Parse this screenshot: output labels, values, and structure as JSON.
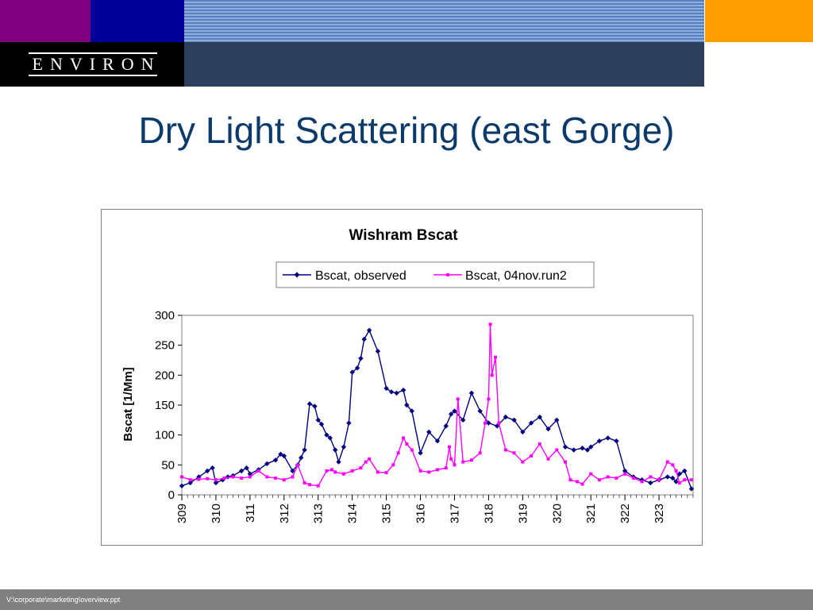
{
  "header": {
    "logo_text": "ENVIRON",
    "colors": {
      "purple": "#800080",
      "blue": "#000099",
      "orange": "#ffa000",
      "navy": "#2b3e5c",
      "black": "#000000"
    }
  },
  "slide": {
    "title": "Dry Light Scattering (east Gorge)",
    "title_color": "#0c3a6a"
  },
  "footer": {
    "path": "V:\\corporate\\marketing\\overview.ppt"
  },
  "chart_data": {
    "type": "line",
    "title": "Wishram Bscat",
    "xlabel": "",
    "ylabel": "Bscat [1/Mm]",
    "ylim": [
      0,
      300
    ],
    "xlim": [
      309,
      324
    ],
    "yticks": [
      0,
      50,
      100,
      150,
      200,
      250,
      300
    ],
    "xticks": [
      309,
      310,
      311,
      312,
      313,
      314,
      315,
      316,
      317,
      318,
      319,
      320,
      321,
      322,
      323
    ],
    "grid": false,
    "legend": "top-center",
    "series": [
      {
        "name": "Bscat, observed",
        "color": "#000080",
        "marker": "diamond",
        "x": [
          309.0,
          309.25,
          309.5,
          309.75,
          309.9,
          310.0,
          310.2,
          310.35,
          310.5,
          310.75,
          310.9,
          311.0,
          311.25,
          311.5,
          311.75,
          311.9,
          312.0,
          312.25,
          312.4,
          312.5,
          312.6,
          312.75,
          312.9,
          313.0,
          313.1,
          313.25,
          313.35,
          313.5,
          313.6,
          313.75,
          313.9,
          314.0,
          314.15,
          314.25,
          314.35,
          314.5,
          314.75,
          315.0,
          315.15,
          315.3,
          315.5,
          315.6,
          315.75,
          316.0,
          316.25,
          316.5,
          316.75,
          316.9,
          317.0,
          317.25,
          317.5,
          317.75,
          318.0,
          318.25,
          318.5,
          318.75,
          319.0,
          319.25,
          319.5,
          319.75,
          320.0,
          320.25,
          320.5,
          320.75,
          320.9,
          321.0,
          321.25,
          321.5,
          321.75,
          322.0,
          322.25,
          322.5,
          322.75,
          323.0,
          323.25,
          323.4,
          323.5,
          323.6,
          323.75,
          323.95
        ],
        "values": [
          15,
          20,
          30,
          40,
          45,
          20,
          25,
          30,
          32,
          40,
          45,
          35,
          42,
          52,
          58,
          68,
          65,
          40,
          50,
          62,
          75,
          152,
          148,
          125,
          118,
          100,
          95,
          75,
          55,
          80,
          120,
          205,
          212,
          228,
          260,
          275,
          240,
          178,
          172,
          170,
          175,
          150,
          140,
          70,
          105,
          90,
          115,
          135,
          140,
          125,
          170,
          140,
          120,
          115,
          130,
          125,
          105,
          120,
          130,
          110,
          125,
          80,
          75,
          78,
          75,
          80,
          90,
          95,
          90,
          40,
          30,
          25,
          20,
          25,
          30,
          28,
          22,
          35,
          40,
          10
        ]
      },
      {
        "name": "Bscat, 04nov.run2",
        "color": "#ff00ff",
        "marker": "square",
        "x": [
          309.0,
          309.25,
          309.5,
          309.75,
          310.0,
          310.25,
          310.5,
          310.75,
          311.0,
          311.25,
          311.5,
          311.75,
          312.0,
          312.25,
          312.4,
          312.6,
          312.75,
          313.0,
          313.25,
          313.4,
          313.5,
          313.75,
          314.0,
          314.25,
          314.4,
          314.5,
          314.75,
          315.0,
          315.2,
          315.35,
          315.5,
          315.6,
          315.75,
          316.0,
          316.25,
          316.5,
          316.75,
          316.85,
          316.9,
          317.0,
          317.1,
          317.25,
          317.5,
          317.75,
          317.9,
          318.0,
          318.05,
          318.1,
          318.2,
          318.3,
          318.5,
          318.75,
          319.0,
          319.25,
          319.5,
          319.75,
          320.0,
          320.25,
          320.4,
          320.6,
          320.75,
          321.0,
          321.25,
          321.5,
          321.75,
          322.0,
          322.25,
          322.5,
          322.75,
          323.0,
          323.25,
          323.4,
          323.5,
          323.6,
          323.75,
          323.95
        ],
        "values": [
          30,
          25,
          26,
          27,
          25,
          28,
          30,
          28,
          30,
          40,
          30,
          28,
          25,
          30,
          50,
          20,
          17,
          15,
          40,
          42,
          38,
          35,
          40,
          45,
          55,
          60,
          38,
          37,
          50,
          70,
          95,
          85,
          75,
          40,
          38,
          42,
          45,
          80,
          60,
          50,
          160,
          55,
          58,
          70,
          120,
          160,
          285,
          200,
          230,
          120,
          75,
          70,
          55,
          65,
          85,
          60,
          75,
          55,
          25,
          22,
          18,
          35,
          25,
          30,
          28,
          35,
          28,
          22,
          30,
          25,
          55,
          50,
          40,
          20,
          25,
          25
        ]
      }
    ]
  }
}
